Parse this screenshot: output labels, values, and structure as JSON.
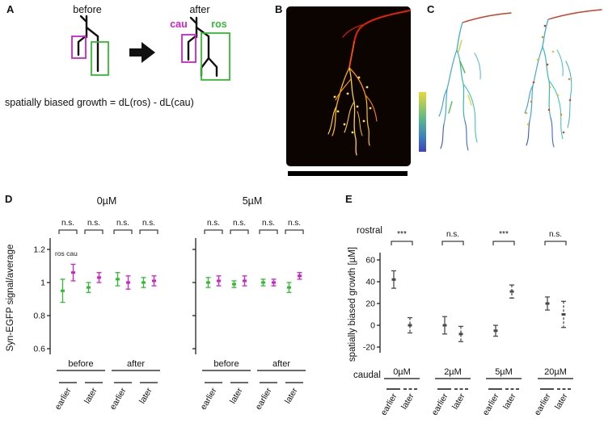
{
  "panelA": {
    "label": "A",
    "before": "before",
    "after": "after",
    "cau": "cau",
    "ros": "ros",
    "formula": "spatially biased growth = dL(ros) - dL(cau)",
    "cau_color": "#cc22cc",
    "ros_color": "#33bb33"
  },
  "panelB": {
    "label": "B"
  },
  "panelC": {
    "label": "C"
  },
  "panelD": {
    "label": "D",
    "legend": "ros cau",
    "ylabel": "Syn-EGFP signal/average"
  },
  "panelE": {
    "label": "E",
    "rostral_label": "rostral",
    "caudal_label": "caudal",
    "ylabel": "spatially biased growth [µM]"
  },
  "chart_data": [
    {
      "id": "D-0uM",
      "type": "scatter",
      "title": "0µM",
      "ylabel": "Syn-EGFP signal/average",
      "ylim": [
        0.55,
        1.3
      ],
      "yticks": [
        0.6,
        0.8,
        1,
        1.2
      ],
      "ytick_labels": [
        "0.6",
        "0.8",
        "1",
        "1.2"
      ],
      "group_labels": [
        "before",
        "after"
      ],
      "x_labels": [
        "earlier",
        "later",
        "earlier",
        "later"
      ],
      "series": [
        {
          "name": "ros",
          "color": "#33bb33",
          "values": [
            0.95,
            0.97,
            1.02,
            1.0
          ],
          "errors": [
            0.07,
            0.03,
            0.04,
            0.03
          ]
        },
        {
          "name": "cau",
          "color": "#cc22cc",
          "values": [
            1.06,
            1.03,
            1.0,
            1.01
          ],
          "errors": [
            0.05,
            0.03,
            0.04,
            0.03
          ]
        }
      ],
      "significance": [
        "n.s.",
        "n.s.",
        "n.s.",
        "n.s."
      ],
      "legend": "ros cau"
    },
    {
      "id": "D-5uM",
      "type": "scatter",
      "title": "5µM",
      "ylabel": "Syn-EGFP signal/average",
      "ylim": [
        0.55,
        1.3
      ],
      "yticks": [
        0.6,
        0.8,
        1,
        1.2
      ],
      "ytick_labels": [
        "0.6",
        "0.8",
        "1",
        "1.2"
      ],
      "group_labels": [
        "before",
        "after"
      ],
      "x_labels": [
        "earlier",
        "later",
        "earlier",
        "later"
      ],
      "series": [
        {
          "name": "ros",
          "color": "#33bb33",
          "values": [
            1.0,
            0.99,
            1.0,
            0.97
          ],
          "errors": [
            0.03,
            0.02,
            0.02,
            0.03
          ]
        },
        {
          "name": "cau",
          "color": "#cc22cc",
          "values": [
            1.01,
            1.01,
            1.0,
            1.04
          ],
          "errors": [
            0.03,
            0.03,
            0.02,
            0.02
          ]
        }
      ],
      "significance": [
        "n.s.",
        "n.s.",
        "n.s.",
        "n.s."
      ]
    },
    {
      "id": "E",
      "type": "scatter",
      "ylabel": "spatially biased growth [µM]",
      "ylim": [
        -25,
        67
      ],
      "yticks": [
        -20,
        0,
        20,
        40,
        60
      ],
      "ytick_labels": [
        "-20",
        "0",
        "20",
        "40",
        "60"
      ],
      "categories": [
        "0µM",
        "2µM",
        "5µM",
        "20µM"
      ],
      "x_labels": [
        "earlier",
        "later"
      ],
      "series": [
        {
          "name": "earlier",
          "line_style": "solid",
          "color": "#4a4a4a",
          "values": [
            42,
            0,
            -5,
            20
          ],
          "errors": [
            8,
            8,
            5,
            6
          ]
        },
        {
          "name": "later",
          "line_style": "dashed",
          "color": "#4a4a4a",
          "values": [
            0,
            -8,
            31,
            10
          ],
          "errors": [
            7,
            7,
            6,
            12
          ]
        }
      ],
      "significance": [
        "***",
        "n.s.",
        "***",
        "n.s."
      ]
    }
  ]
}
